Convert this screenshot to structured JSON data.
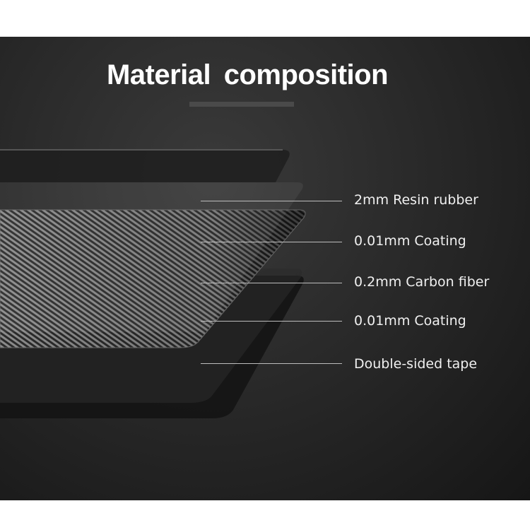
{
  "title": "Material composition",
  "layers": [
    {
      "label": "2mm Resin rubber"
    },
    {
      "label": "0.01mm Coating"
    },
    {
      "label": "0.2mm Carbon fiber"
    },
    {
      "label": "0.01mm Coating"
    },
    {
      "label": "Double-sided tape"
    }
  ],
  "colors": {
    "background": "#262626",
    "text": "#ffffff",
    "leader_line": "#bdbdbd"
  }
}
